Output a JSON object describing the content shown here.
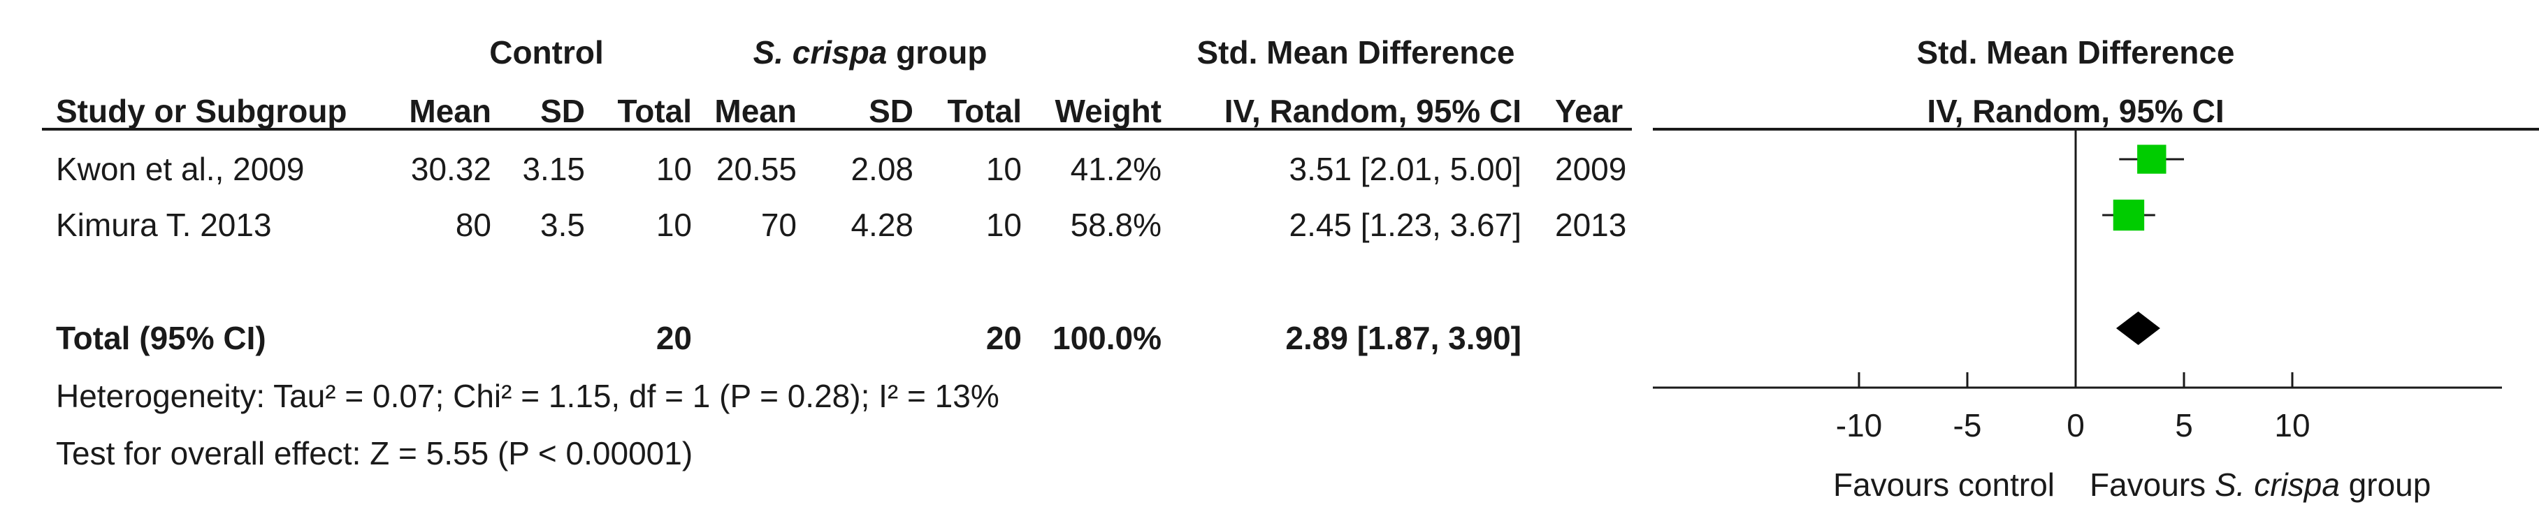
{
  "header": {
    "control_group": "Control",
    "experimental_group_italic": "S. crispa",
    "experimental_group_suffix": " group",
    "effect_measure": "Std. Mean Difference",
    "plot_title": "Std. Mean Difference",
    "plot_subtitle": "IV, Random, 95% CI"
  },
  "columns": {
    "study": "Study or Subgroup",
    "control_mean": "Mean",
    "control_sd": "SD",
    "control_total": "Total",
    "exp_mean": "Mean",
    "exp_sd": "SD",
    "exp_total": "Total",
    "weight": "Weight",
    "effect": "IV, Random, 95% CI",
    "year": "Year"
  },
  "studies": [
    {
      "name": "Kwon et al., 2009",
      "control_mean": "30.32",
      "control_sd": "3.15",
      "control_total": "10",
      "exp_mean": "20.55",
      "exp_sd": "2.08",
      "exp_total": "10",
      "weight": "41.2%",
      "effect": "3.51 [2.01, 5.00]",
      "year": "2009"
    },
    {
      "name": "Kimura T. 2013",
      "control_mean": "80",
      "control_sd": "3.5",
      "control_total": "10",
      "exp_mean": "70",
      "exp_sd": "4.28",
      "exp_total": "10",
      "weight": "58.8%",
      "effect": "2.45 [1.23, 3.67]",
      "year": "2013"
    }
  ],
  "total": {
    "label": "Total (95% CI)",
    "control_total": "20",
    "exp_total": "20",
    "weight": "100.0%",
    "effect": "2.89 [1.87, 3.90]"
  },
  "footer": {
    "heterogeneity": "Heterogeneity: Tau² = 0.07; Chi² = 1.15, df = 1 (P = 0.28); I² = 13%",
    "overall_effect": "Test for overall effect: Z = 5.55 (P < 0.00001)"
  },
  "axis": {
    "favours_left": "Favours control",
    "favours_right_prefix": "Favours ",
    "favours_right_italic": "S. crispa",
    "favours_right_suffix": " group"
  },
  "colors": {
    "study_marker": "#00cc00",
    "total_diamond": "#000000",
    "text": "#1a1a1a"
  },
  "chart_data": {
    "type": "forest",
    "title": "Std. Mean Difference",
    "subtitle": "IV, Random, 95% CI",
    "xlim": [
      -10,
      10
    ],
    "ticks": [
      -10,
      -5,
      0,
      5,
      10
    ],
    "null_value": 0,
    "points": [
      {
        "study": "Kwon et al., 2009",
        "estimate": 3.51,
        "lower": 2.01,
        "upper": 5.0,
        "weight": 41.2
      },
      {
        "study": "Kimura T. 2013",
        "estimate": 2.45,
        "lower": 1.23,
        "upper": 3.67,
        "weight": 58.8
      }
    ],
    "pooled": {
      "estimate": 2.89,
      "lower": 1.87,
      "upper": 3.9
    }
  }
}
